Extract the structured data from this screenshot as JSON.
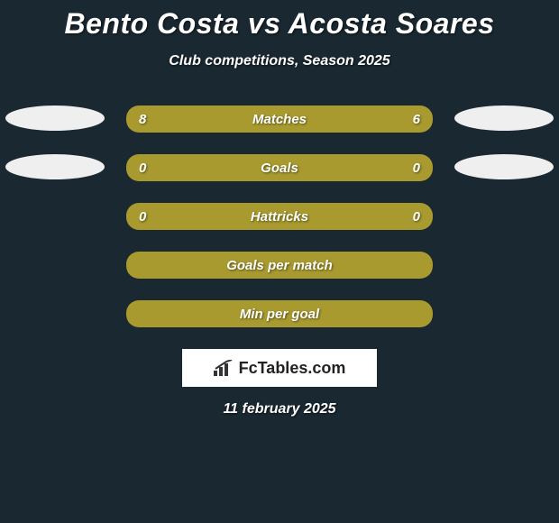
{
  "type": "infographic",
  "background_color": "#1a2831",
  "title": "Bento Costa vs Acosta Soares",
  "subtitle": "Club competitions, Season 2025",
  "title_fontsize": 32,
  "subtitle_fontsize": 16,
  "bar_color": "#a89a2e",
  "ellipse_light": "#efefef",
  "text_color": "#ffffff",
  "rows": [
    {
      "label": "Matches",
      "left": "8",
      "right": "6",
      "ellipse_left": true,
      "ellipse_right": true
    },
    {
      "label": "Goals",
      "left": "0",
      "right": "0",
      "ellipse_left": true,
      "ellipse_right": true
    },
    {
      "label": "Hattricks",
      "left": "0",
      "right": "0",
      "ellipse_left": false,
      "ellipse_right": false
    },
    {
      "label": "Goals per match",
      "left": "",
      "right": "",
      "ellipse_left": false,
      "ellipse_right": false
    },
    {
      "label": "Min per goal",
      "left": "",
      "right": "",
      "ellipse_left": false,
      "ellipse_right": false
    }
  ],
  "logo_text": "FcTables.com",
  "date": "11 february 2025"
}
